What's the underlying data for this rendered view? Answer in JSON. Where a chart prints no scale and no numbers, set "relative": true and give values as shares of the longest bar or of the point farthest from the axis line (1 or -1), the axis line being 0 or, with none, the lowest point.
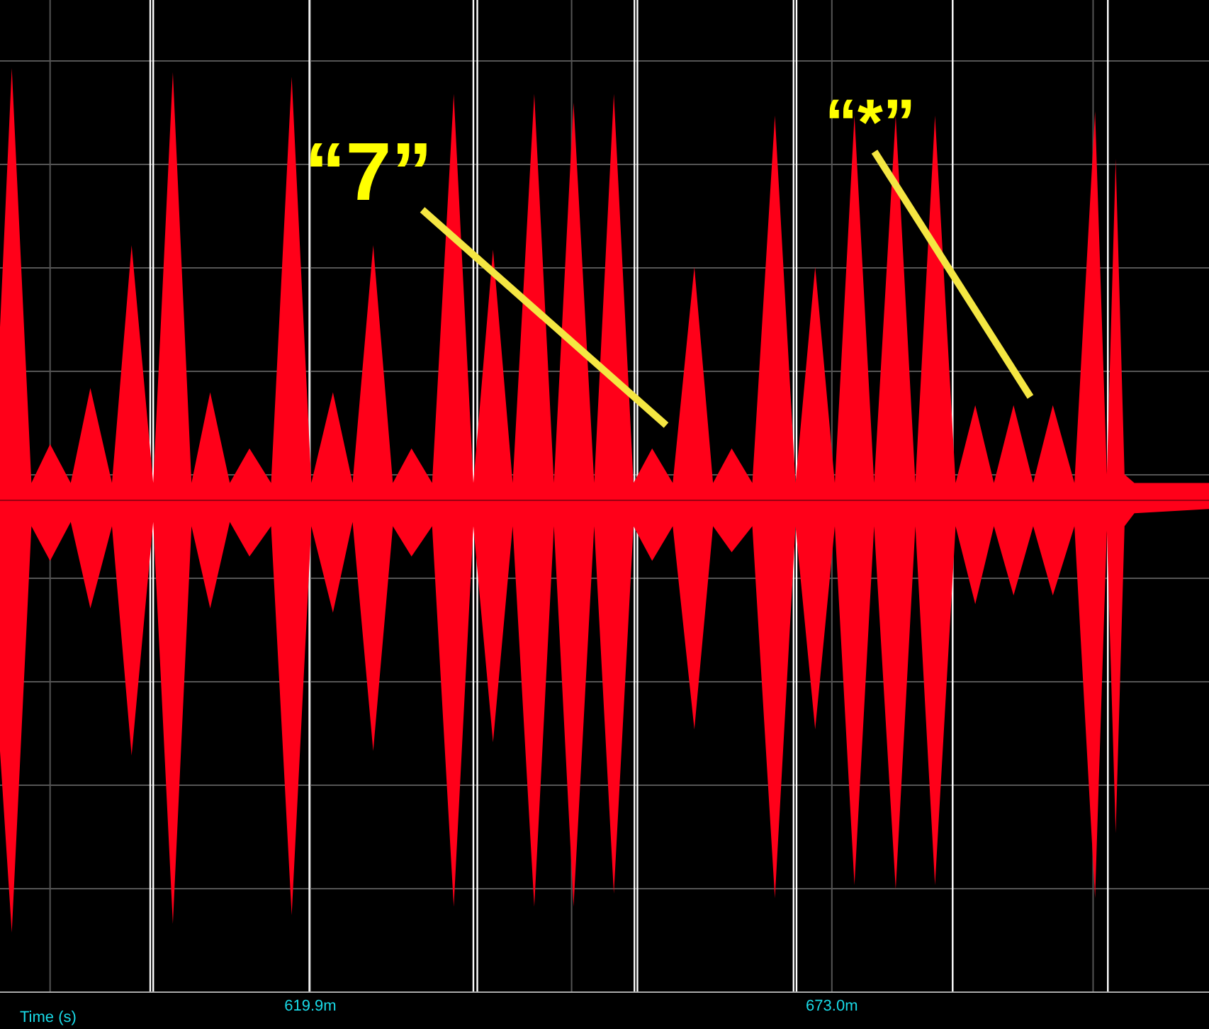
{
  "chart_data": {
    "type": "area",
    "relative": true,
    "xlabel": "Time (s)",
    "xlim": [
      588.3,
      711.4
    ],
    "xticks": [
      {
        "value": 593.4,
        "label": null
      },
      {
        "value": 619.9,
        "label": "619.9m"
      },
      {
        "value": 646.5,
        "label": null
      },
      {
        "value": 673.0,
        "label": "673.0m"
      },
      {
        "value": 699.6,
        "label": null
      }
    ],
    "grid": true,
    "x": [
      588.3,
      589.5,
      591.5,
      593.4,
      595.5,
      597.5,
      599.7,
      601.7,
      603.9,
      605.9,
      607.8,
      609.7,
      611.7,
      613.7,
      615.9,
      618.0,
      620.0,
      622.2,
      624.2,
      626.3,
      628.3,
      630.2,
      632.3,
      634.5,
      636.5,
      638.5,
      640.5,
      642.7,
      644.7,
      646.7,
      648.8,
      650.8,
      652.8,
      654.7,
      656.8,
      659.0,
      660.9,
      662.8,
      664.9,
      667.2,
      669.3,
      671.3,
      673.3,
      675.3,
      677.3,
      679.5,
      681.5,
      683.5,
      685.6,
      687.6,
      689.5,
      691.5,
      693.5,
      695.5,
      697.7,
      699.8,
      701.0,
      701.9,
      702.8,
      703.8,
      711.4
    ],
    "series": [
      {
        "color": "#ff0019",
        "values": [
          0.4,
          1.0,
          0.04,
          0.13,
          0.04,
          0.26,
          0.04,
          0.59,
          0.04,
          0.99,
          0.04,
          0.25,
          0.04,
          0.12,
          0.04,
          0.98,
          0.04,
          0.25,
          0.04,
          0.59,
          0.04,
          0.12,
          0.04,
          0.94,
          0.04,
          0.58,
          0.04,
          0.94,
          0.04,
          0.92,
          0.04,
          0.94,
          0.04,
          0.12,
          0.04,
          0.54,
          0.04,
          0.12,
          0.04,
          0.89,
          0.04,
          0.54,
          0.04,
          0.89,
          0.04,
          0.89,
          0.04,
          0.89,
          0.04,
          0.22,
          0.04,
          0.22,
          0.04,
          0.22,
          0.04,
          0.9,
          0.06,
          0.79,
          0.06,
          0.04,
          0.04
        ]
      },
      {
        "color": "#ff0019",
        "values": [
          -0.58,
          -1.0,
          -0.06,
          -0.14,
          -0.05,
          -0.25,
          -0.06,
          -0.59,
          -0.05,
          -0.98,
          -0.06,
          -0.25,
          -0.05,
          -0.13,
          -0.06,
          -0.96,
          -0.06,
          -0.26,
          -0.05,
          -0.58,
          -0.06,
          -0.13,
          -0.06,
          -0.94,
          -0.06,
          -0.56,
          -0.06,
          -0.94,
          -0.06,
          -0.94,
          -0.06,
          -0.91,
          -0.06,
          -0.14,
          -0.06,
          -0.53,
          -0.06,
          -0.12,
          -0.06,
          -0.92,
          -0.06,
          -0.53,
          -0.06,
          -0.89,
          -0.06,
          -0.9,
          -0.06,
          -0.89,
          -0.06,
          -0.24,
          -0.06,
          -0.22,
          -0.06,
          -0.22,
          -0.06,
          -0.92,
          -0.07,
          -0.77,
          -0.06,
          -0.03,
          -0.02
        ]
      }
    ],
    "ref_lines": [
      {
        "axis": "x",
        "value": 603.6,
        "color": "#ffffff"
      },
      {
        "axis": "x",
        "value": 603.9,
        "color": "#ffffff"
      },
      {
        "axis": "x",
        "value": 619.8,
        "color": "#ffffff"
      },
      {
        "axis": "x",
        "value": 636.5,
        "color": "#ffffff"
      },
      {
        "axis": "x",
        "value": 636.9,
        "color": "#ffffff"
      },
      {
        "axis": "x",
        "value": 652.9,
        "color": "#ffffff"
      },
      {
        "axis": "x",
        "value": 653.2,
        "color": "#ffffff"
      },
      {
        "axis": "x",
        "value": 669.1,
        "color": "#ffffff"
      },
      {
        "axis": "x",
        "value": 669.4,
        "color": "#ffffff"
      },
      {
        "axis": "x",
        "value": 685.3,
        "color": "#ffffff"
      },
      {
        "axis": "x",
        "value": 701.1,
        "color": "#ffffff"
      },
      {
        "axis": "y",
        "value": 0,
        "color": "#9a0010"
      }
    ],
    "annotations": [
      "“7”",
      "“*”"
    ]
  }
}
